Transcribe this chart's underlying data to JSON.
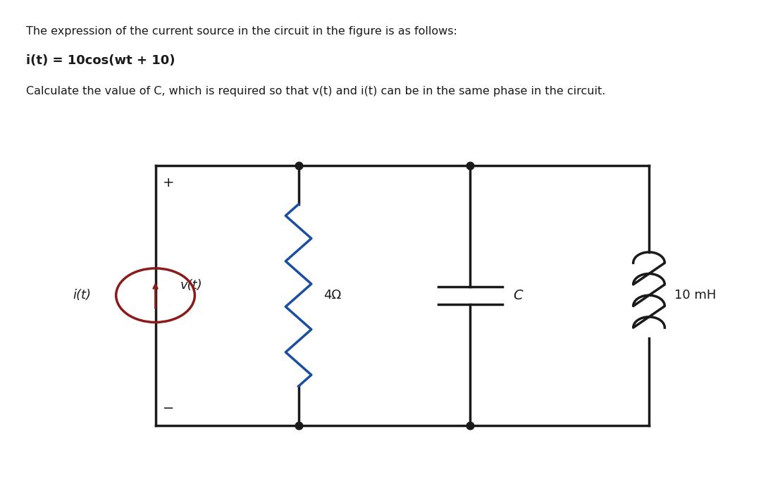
{
  "title_line1": "The expression of the current source in the circuit in the figure is as follows:",
  "title_line2": "i(t) = 10cos(wt + 10)",
  "title_line3": "Calculate the value of C, which is required so that v(t) and i(t) can be in the same phase in the circuit.",
  "bg_color": "#c8bfb0",
  "circuit_bg": "#c8bfb0",
  "wire_color": "#1a1a1a",
  "resistor_color": "#1a4fa0",
  "source_color": "#8b1a1a",
  "text_color": "#1a1a1a",
  "label_it": "i(t)",
  "label_vt": "v(t)",
  "label_R": "4Ω",
  "label_C": "C",
  "label_L": "10 mH",
  "plus_sign": "+",
  "minus_sign": "−"
}
